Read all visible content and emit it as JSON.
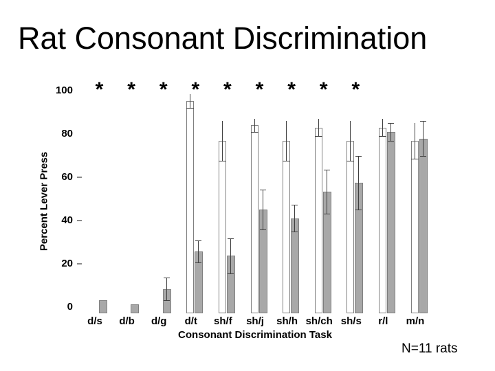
{
  "slide": {
    "title": "Rat Consonant Discrimination",
    "footnote": "N=11 rats"
  },
  "chart_data": {
    "type": "bar",
    "title": "Rat Consonant Discrimination",
    "xlabel": "Consonant Discrimination Task",
    "ylabel": "Percent Lever Press",
    "ylim": [
      0,
      100
    ],
    "yticks": [
      0,
      20,
      40,
      60,
      80,
      100
    ],
    "grid": false,
    "legend": "none",
    "categories": [
      "d/s",
      "d/b",
      "d/g",
      "d/t",
      "sh/f",
      "sh/j",
      "sh/h",
      "sh/ch",
      "sh/s",
      "r/l",
      "m/n"
    ],
    "series": [
      {
        "name": "white-bars",
        "fill": "#ffffff",
        "values": [
          0,
          0,
          0,
          96,
          78,
          85,
          78,
          84,
          78,
          84,
          78
        ],
        "errors": [
          0,
          0,
          0,
          3,
          9,
          3,
          9,
          4,
          9,
          4,
          8
        ]
      },
      {
        "name": "gray-bars",
        "fill": "#a8a8a8",
        "values": [
          6,
          4,
          11,
          28,
          26,
          47,
          43,
          55,
          59,
          82,
          79
        ],
        "errors": [
          0,
          0,
          5,
          5,
          8,
          9,
          6,
          10,
          12,
          4,
          8
        ]
      }
    ],
    "significance_markers": {
      "symbol": "*",
      "flags": [
        true,
        true,
        true,
        true,
        true,
        true,
        true,
        true,
        true,
        false,
        false
      ]
    },
    "colors": {
      "bar_gray_fill": "#a8a8a8",
      "bar_outline": "#7f7f7f",
      "error_bar": "#3f3f3f",
      "text": "#000000",
      "background": "#ffffff"
    }
  }
}
